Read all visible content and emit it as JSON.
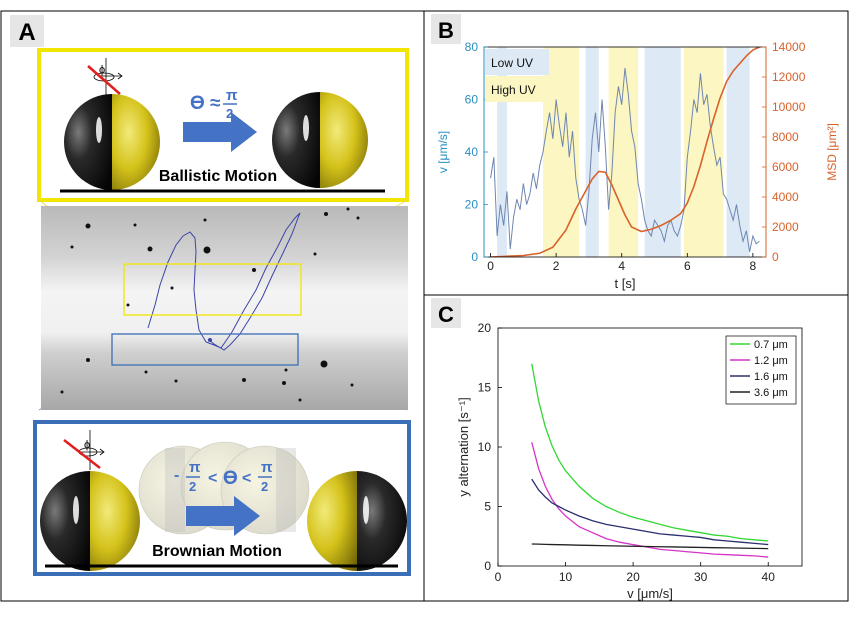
{
  "panels": {
    "a": {
      "letter": "A"
    },
    "b": {
      "letter": "B"
    },
    "c": {
      "letter": "C"
    }
  },
  "panel_a": {
    "top": {
      "phi": "ϕ",
      "angle_label": "ϴ ≈",
      "pi": "π",
      "two": "2",
      "caption": "Ballistic Motion"
    },
    "bottom": {
      "phi": "ϕ",
      "minus": "-",
      "pi_left": "π",
      "two_left": "2",
      "lt1": "<",
      "theta": "ϴ",
      "lt2": "<",
      "pi_right": "π",
      "two_right": "2",
      "caption": "Brownian Motion"
    }
  },
  "colors": {
    "yellow_frame": "#f2e600",
    "blue_frame": "#3a6fb8",
    "arrow_blue": "#4472c4",
    "janus_gold": "#d4c21a",
    "v_trace": "#6f86b0",
    "msd_trace": "#d9622b",
    "low_uv_band": "#dde9f5",
    "high_uv_band": "#fbf6c2",
    "left_axis": "#2a8fc2",
    "right_axis": "#d9622b",
    "c_0_7": "#33d633",
    "c_1_2": "#d633c8",
    "c_1_6": "#2b2f6e",
    "c_3_6": "#222222"
  },
  "chart_data": [
    {
      "id": "B",
      "type": "line",
      "title": "",
      "xlabel": "t [s]",
      "ylabel_left": "v [μm/s]",
      "ylabel_right": "MSD [μm²]",
      "xlim": [
        -0.2,
        8.4
      ],
      "ylim_left": [
        0,
        80
      ],
      "ylim_right": [
        0,
        14000
      ],
      "xticks": [
        0,
        2,
        4,
        6,
        8
      ],
      "yticks_left": [
        0,
        20,
        40,
        60,
        80
      ],
      "yticks_right": [
        0,
        2000,
        4000,
        6000,
        8000,
        10000,
        12000,
        14000
      ],
      "legend": [
        "Low UV",
        "High UV"
      ],
      "legend_position": "top-left",
      "low_uv_intervals": [
        [
          0.2,
          0.5
        ],
        [
          2.9,
          3.3
        ],
        [
          4.7,
          5.8
        ],
        [
          7.2,
          7.9
        ]
      ],
      "high_uv_intervals": [
        [
          1.6,
          2.7
        ],
        [
          3.6,
          4.5
        ],
        [
          5.9,
          7.1
        ]
      ],
      "series": [
        {
          "name": "v",
          "axis": "left",
          "x": [
            0,
            0.1,
            0.2,
            0.3,
            0.4,
            0.5,
            0.6,
            0.7,
            0.8,
            0.9,
            1.0,
            1.1,
            1.2,
            1.3,
            1.4,
            1.5,
            1.6,
            1.7,
            1.8,
            1.9,
            2.0,
            2.1,
            2.2,
            2.3,
            2.4,
            2.5,
            2.6,
            2.7,
            2.8,
            2.9,
            3.0,
            3.1,
            3.2,
            3.3,
            3.4,
            3.5,
            3.6,
            3.7,
            3.8,
            3.9,
            4.0,
            4.1,
            4.2,
            4.3,
            4.4,
            4.5,
            4.6,
            4.7,
            4.8,
            4.9,
            5.0,
            5.1,
            5.2,
            5.3,
            5.4,
            5.5,
            5.6,
            5.7,
            5.8,
            5.9,
            6.0,
            6.1,
            6.2,
            6.3,
            6.4,
            6.5,
            6.6,
            6.7,
            6.8,
            6.9,
            7.0,
            7.1,
            7.2,
            7.3,
            7.4,
            7.5,
            7.6,
            7.7,
            7.8,
            7.9,
            8.0,
            8.1,
            8.2
          ],
          "values": [
            30,
            38,
            8,
            20,
            12,
            25,
            3,
            15,
            22,
            18,
            28,
            20,
            24,
            32,
            26,
            35,
            40,
            48,
            55,
            45,
            60,
            50,
            42,
            55,
            38,
            48,
            30,
            22,
            18,
            12,
            25,
            45,
            55,
            40,
            60,
            42,
            18,
            32,
            55,
            65,
            58,
            72,
            62,
            48,
            42,
            28,
            22,
            14,
            10,
            8,
            14,
            12,
            10,
            6,
            12,
            14,
            10,
            8,
            12,
            18,
            38,
            48,
            60,
            55,
            70,
            58,
            62,
            50,
            42,
            35,
            38,
            24,
            22,
            18,
            14,
            20,
            12,
            6,
            10,
            2,
            8,
            5,
            6
          ]
        },
        {
          "name": "MSD",
          "axis": "right",
          "x": [
            0,
            0.5,
            1.0,
            1.5,
            1.9,
            2.3,
            2.6,
            2.9,
            3.1,
            3.3,
            3.5,
            3.7,
            3.9,
            4.1,
            4.3,
            4.6,
            4.9,
            5.2,
            5.5,
            5.8,
            6.0,
            6.2,
            6.4,
            6.6,
            6.8,
            7.0,
            7.2,
            7.4,
            7.6,
            7.8,
            8.0,
            8.2
          ],
          "values": [
            0,
            50,
            100,
            250,
            650,
            1800,
            3200,
            4400,
            5200,
            5700,
            5650,
            4800,
            3800,
            2800,
            2000,
            1700,
            1850,
            2100,
            2450,
            2900,
            3600,
            4700,
            6100,
            7700,
            9200,
            10600,
            11700,
            12400,
            12900,
            13400,
            13800,
            14000
          ]
        }
      ]
    },
    {
      "id": "C",
      "type": "line",
      "title": "",
      "xlabel": "v [μm/s]",
      "ylabel": "y alternation [s⁻¹]",
      "xlim": [
        0,
        45
      ],
      "ylim": [
        0,
        20
      ],
      "xticks": [
        0,
        10,
        20,
        30,
        40
      ],
      "yticks": [
        0,
        5,
        10,
        15,
        20
      ],
      "legend_position": "top-right",
      "x": [
        5,
        6,
        7,
        8,
        9,
        10,
        12,
        14,
        16,
        18,
        20,
        22,
        24,
        26,
        28,
        30,
        32,
        34,
        36,
        38,
        40
      ],
      "series": [
        {
          "name": "0.7 μm",
          "values": [
            17.0,
            13.9,
            11.7,
            10.1,
            8.9,
            8.0,
            6.7,
            5.7,
            5.0,
            4.5,
            4.1,
            3.8,
            3.5,
            3.2,
            3.0,
            2.8,
            2.6,
            2.5,
            2.3,
            2.2,
            2.1
          ]
        },
        {
          "name": "1.2 μm",
          "values": [
            10.4,
            8.2,
            6.7,
            5.6,
            4.8,
            4.2,
            3.3,
            2.8,
            2.3,
            2.0,
            1.8,
            1.6,
            1.4,
            1.3,
            1.2,
            1.1,
            1.0,
            0.95,
            0.9,
            0.85,
            0.75
          ]
        },
        {
          "name": "1.6 μm",
          "values": [
            7.3,
            6.4,
            5.8,
            5.3,
            5.0,
            4.7,
            4.2,
            3.8,
            3.5,
            3.3,
            3.1,
            2.9,
            2.7,
            2.6,
            2.5,
            2.4,
            2.2,
            2.1,
            2.0,
            1.9,
            1.8
          ]
        },
        {
          "name": "3.6 μm",
          "values": [
            1.85,
            1.84,
            1.82,
            1.8,
            1.79,
            1.78,
            1.75,
            1.73,
            1.7,
            1.68,
            1.66,
            1.64,
            1.62,
            1.6,
            1.58,
            1.56,
            1.54,
            1.52,
            1.5,
            1.48,
            1.46
          ]
        }
      ]
    }
  ]
}
